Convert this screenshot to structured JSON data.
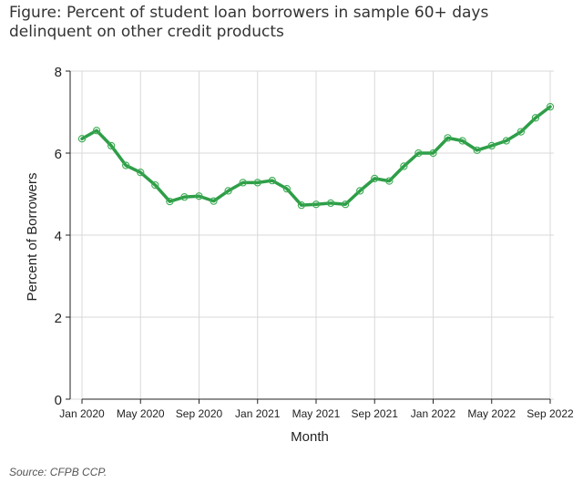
{
  "figure": {
    "title_line1": "Figure: Percent of student loan borrowers in sample 60+ days",
    "title_line2": "delinquent on other credit products",
    "source": "Source: CFPB CCP."
  },
  "colors": {
    "line": "#2e9e48",
    "marker_stroke": "#3cab52",
    "axis": "#222222",
    "grid": "#d9d9d9"
  },
  "chart_data": {
    "type": "line",
    "xlabel": "Month",
    "ylabel": "Percent of Borrowers",
    "ylim": [
      0,
      8
    ],
    "yticks": [
      0,
      2,
      4,
      6,
      8
    ],
    "grid": true,
    "x_tick_labels": [
      "Jan 2020",
      "May 2020",
      "Sep 2020",
      "Jan 2021",
      "May 2021",
      "Sep 2021",
      "Jan 2022",
      "May 2022",
      "Sep 2022"
    ],
    "x": [
      "Jan 2020",
      "Feb 2020",
      "Mar 2020",
      "Apr 2020",
      "May 2020",
      "Jun 2020",
      "Jul 2020",
      "Aug 2020",
      "Sep 2020",
      "Oct 2020",
      "Nov 2020",
      "Dec 2020",
      "Jan 2021",
      "Feb 2021",
      "Mar 2021",
      "Apr 2021",
      "May 2021",
      "Jun 2021",
      "Jul 2021",
      "Aug 2021",
      "Sep 2021",
      "Oct 2021",
      "Nov 2021",
      "Dec 2021",
      "Jan 2022",
      "Feb 2022",
      "Mar 2022",
      "Apr 2022",
      "May 2022",
      "Jun 2022",
      "Jul 2022",
      "Aug 2022",
      "Sep 2022"
    ],
    "series": [
      {
        "values": [
          6.35,
          6.55,
          6.18,
          5.7,
          5.53,
          5.22,
          4.82,
          4.93,
          4.95,
          4.83,
          5.08,
          5.28,
          5.28,
          5.33,
          5.13,
          4.73,
          4.75,
          4.78,
          4.75,
          5.08,
          5.38,
          5.32,
          5.68,
          6.0,
          6.0,
          6.37,
          6.3,
          6.07,
          6.18,
          6.3,
          6.52,
          6.86,
          7.13
        ]
      }
    ]
  }
}
